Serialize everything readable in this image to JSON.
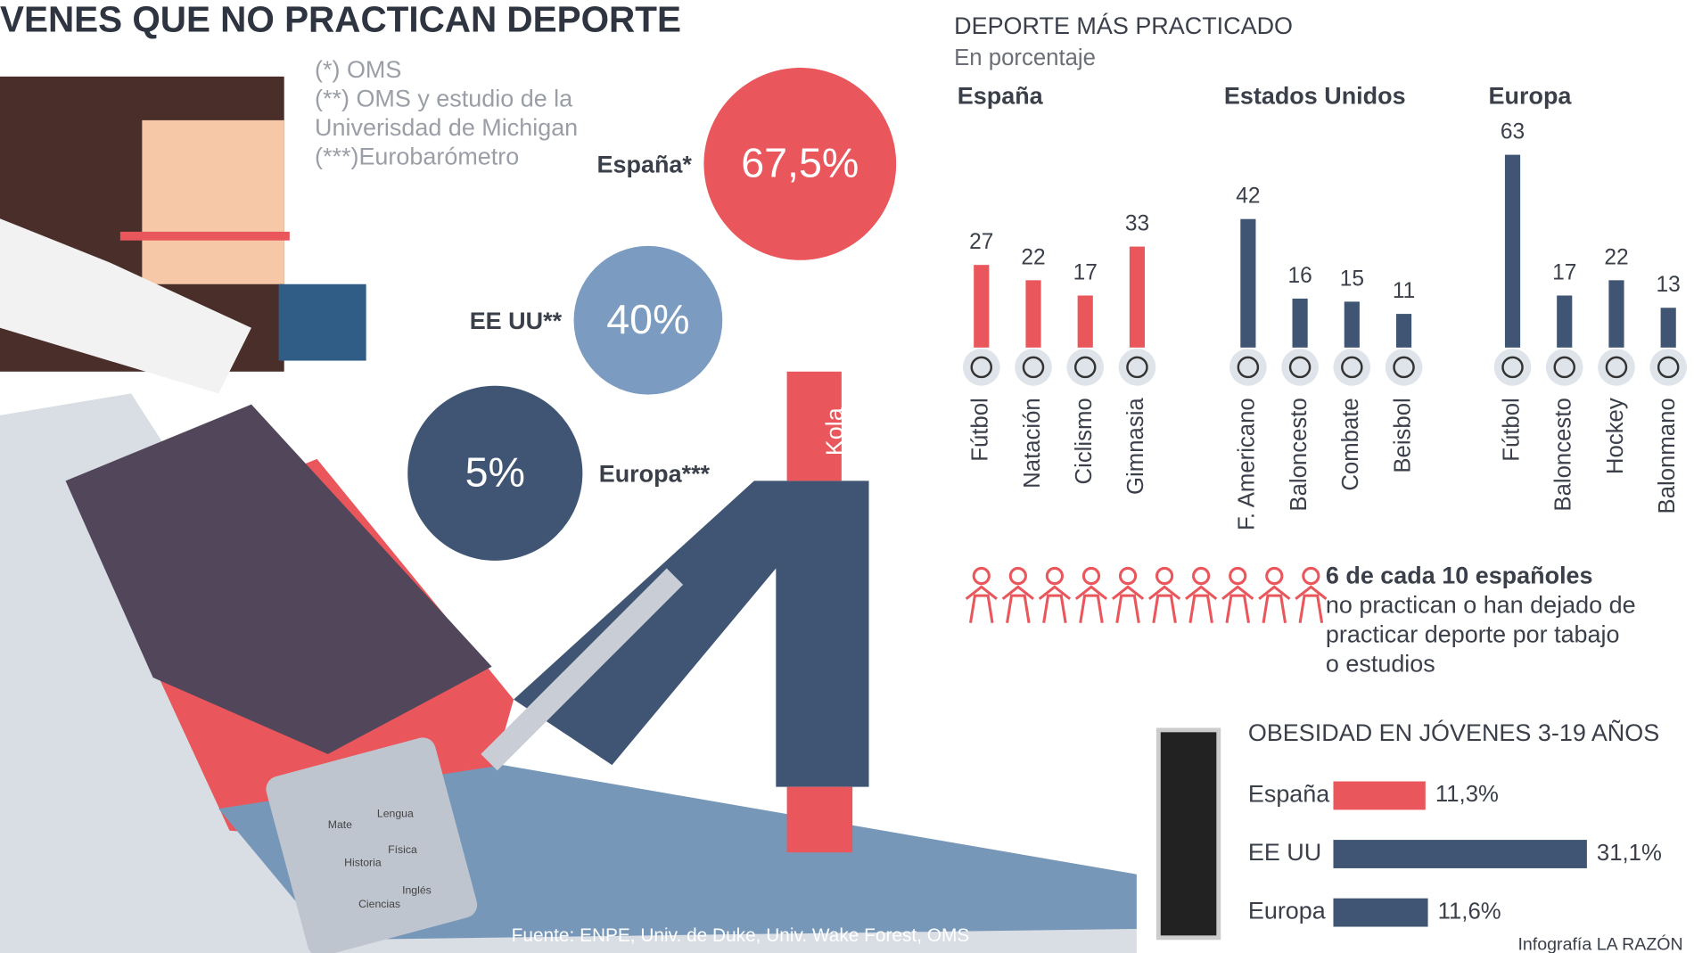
{
  "title": "VENES QUE NO PRACTICAN DEPORTE",
  "notes": [
    "(*) OMS",
    "(**) OMS y estudio de la",
    "Univerisdad de Michigan",
    "(***)Eurobarómetro"
  ],
  "illustration": {
    "can": "Kola",
    "tablet": [
      "Mate",
      "Lengua",
      "Historia",
      "Física",
      "Ciencias",
      "Inglés"
    ]
  },
  "source": "Fuente: ENPE, Univ. de Duke, Univ. Wake Forest, OMS",
  "credit": "Infografía LA RAZÓN",
  "chart_data": [
    {
      "type": "bubble",
      "categories": [
        "España*",
        "EE UU**",
        "Europa***"
      ],
      "values": [
        67.5,
        40,
        5
      ],
      "value_labels": [
        "67,5%",
        "40%",
        "5%"
      ],
      "colors": [
        "#e9565b",
        "#7b9cc0",
        "#3f5573"
      ]
    },
    {
      "type": "bar",
      "title": "DEPORTE MÁS PRACTICADO",
      "subtitle": "En porcentaje",
      "panels": [
        {
          "name": "España",
          "color": "#e9565b",
          "categories": [
            "Fútbol",
            "Natación",
            "Ciclismo",
            "Gimnasia"
          ],
          "values": [
            27,
            22,
            17,
            33
          ]
        },
        {
          "name": "Estados Unidos",
          "color": "#3f5573",
          "categories": [
            "F. Americano",
            "Baloncesto",
            "Combate",
            "Beisbol"
          ],
          "values": [
            42,
            16,
            15,
            11
          ]
        },
        {
          "name": "Europa",
          "color": "#3f5573",
          "categories": [
            "Fútbol",
            "Baloncesto",
            "Hockey",
            "Balonmano"
          ],
          "values": [
            63,
            17,
            22,
            13
          ]
        }
      ]
    },
    {
      "type": "pictogram",
      "value": 6,
      "total": 10,
      "colors": [
        "#e9565b",
        "#e9565b"
      ],
      "headline": "6 de cada 10 españoles",
      "text": [
        "no practican o han dejado de",
        "practicar deporte por tabajo",
        "o estudios"
      ]
    },
    {
      "type": "hbar",
      "title": "OBESIDAD EN JÓVENES 3-19 AÑOS",
      "categories": [
        "España",
        "EE UU",
        "Europa"
      ],
      "values": [
        11.3,
        31.1,
        11.6
      ],
      "value_labels": [
        "11,3%",
        "31,1%",
        "11,6%"
      ],
      "colors": [
        "#e9565b",
        "#3f5573",
        "#3f5573"
      ]
    }
  ]
}
